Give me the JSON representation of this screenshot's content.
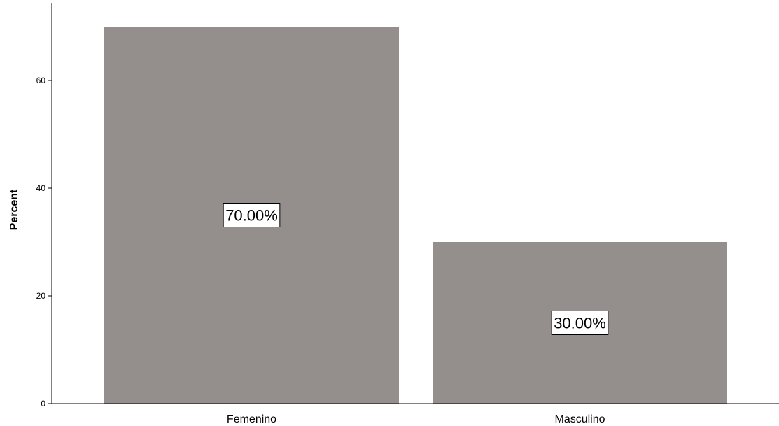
{
  "chart_data": {
    "type": "bar",
    "title": "",
    "xlabel": "",
    "ylabel": "Percent",
    "categories": [
      "Femenino",
      "Masculino"
    ],
    "values": [
      70,
      30
    ],
    "data_labels": [
      "70.00%",
      "30.00%"
    ],
    "ylim": [
      0,
      74
    ],
    "yticks": [
      0,
      20,
      40,
      60
    ],
    "ytick_labels": [
      "0",
      "20",
      "40",
      "60"
    ],
    "grid": false,
    "legend": "none",
    "colors": {
      "bar": "#948f8d",
      "axis": "#000000",
      "label_box_fill": "#ffffff",
      "label_box_stroke": "#000000"
    }
  }
}
